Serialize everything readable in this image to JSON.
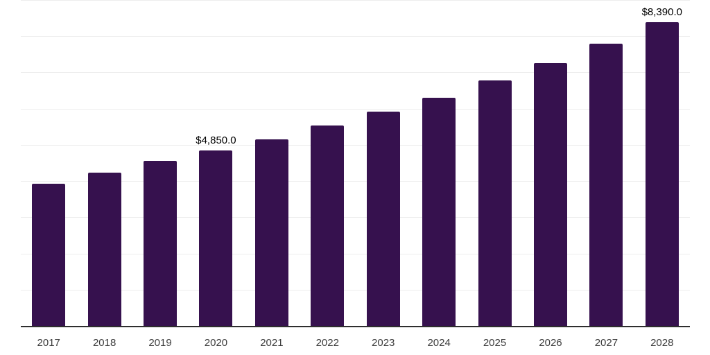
{
  "chart_data": {
    "type": "bar",
    "title": "",
    "xlabel": "",
    "ylabel": "",
    "categories": [
      "2017",
      "2018",
      "2019",
      "2020",
      "2021",
      "2022",
      "2023",
      "2024",
      "2025",
      "2026",
      "2027",
      "2028"
    ],
    "values": [
      3920,
      4230,
      4560,
      4850,
      5160,
      5530,
      5910,
      6300,
      6770,
      7260,
      7800,
      8390
    ],
    "data_labels": [
      {
        "category": "2020",
        "text": "$4,850.0"
      },
      {
        "category": "2028",
        "text": "$8,390.0"
      }
    ],
    "ylim": [
      0,
      9000
    ],
    "gridline_step": 1000,
    "grid": true,
    "legend": "none",
    "bar_color": "#36114e",
    "axis_color": "#2e2e2e",
    "gridline_color": "#ededed",
    "tick_label_color": "#3c3c3c",
    "data_label_color": "#000000"
  }
}
